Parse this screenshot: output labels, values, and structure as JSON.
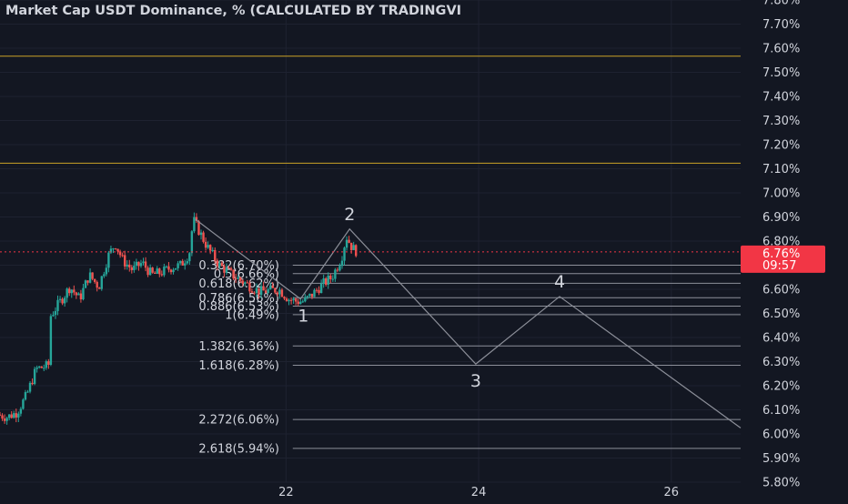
{
  "chart_data": {
    "type": "candlestick",
    "title": "Market Cap USDT Dominance, % (CALCULATED BY TRADINGVI",
    "x_ticks": [
      {
        "label": "22",
        "day": 22
      },
      {
        "label": "24",
        "day": 24
      },
      {
        "label": "26",
        "day": 26
      }
    ],
    "y_ticks": [
      "5.80%",
      "5.90%",
      "6.00%",
      "6.10%",
      "6.20%",
      "6.30%",
      "6.40%",
      "6.50%",
      "6.60%",
      "6.70%",
      "6.80%",
      "6.90%",
      "7.00%",
      "7.10%",
      "7.20%",
      "7.30%",
      "7.40%",
      "7.50%",
      "7.60%",
      "7.70%",
      "7.80%"
    ],
    "ylim": [
      5.8,
      7.8
    ],
    "xlim": [
      19.03,
      26.72
    ],
    "grid": true,
    "current_price": {
      "label": "6.76%",
      "countdown": "09:57",
      "value": 6.755
    },
    "horizontal_lines": [
      7.567,
      7.123
    ],
    "price_series": [
      [
        19.03,
        6.08
      ],
      [
        19.13,
        6.07
      ],
      [
        19.23,
        6.09
      ],
      [
        19.33,
        6.16
      ],
      [
        19.43,
        6.27
      ],
      [
        19.53,
        6.28
      ],
      [
        19.57,
        6.29
      ],
      [
        19.58,
        6.49
      ],
      [
        19.68,
        6.55
      ],
      [
        19.78,
        6.61
      ],
      [
        19.88,
        6.56
      ],
      [
        19.98,
        6.66
      ],
      [
        20.08,
        6.61
      ],
      [
        20.18,
        6.74
      ],
      [
        20.25,
        6.79
      ],
      [
        20.33,
        6.72
      ],
      [
        20.43,
        6.68
      ],
      [
        20.53,
        6.71
      ],
      [
        20.63,
        6.66
      ],
      [
        20.73,
        6.67
      ],
      [
        20.83,
        6.69
      ],
      [
        20.93,
        6.7
      ],
      [
        21.02,
        6.75
      ],
      [
        21.06,
        6.89
      ],
      [
        21.2,
        6.78
      ],
      [
        21.33,
        6.7
      ],
      [
        21.5,
        6.65
      ],
      [
        21.62,
        6.62
      ],
      [
        21.75,
        6.59
      ],
      [
        21.95,
        6.6
      ],
      [
        22.05,
        6.56
      ],
      [
        22.13,
        6.55
      ],
      [
        22.21,
        6.55
      ],
      [
        22.3,
        6.58
      ],
      [
        22.4,
        6.62
      ],
      [
        22.5,
        6.65
      ],
      [
        22.6,
        6.73
      ],
      [
        22.65,
        6.82
      ],
      [
        22.7,
        6.78
      ],
      [
        22.74,
        6.76
      ]
    ],
    "wave_path": [
      {
        "day": 21.06,
        "value": 6.89,
        "label": ""
      },
      {
        "day": 22.15,
        "value": 6.56,
        "label": "1"
      },
      {
        "day": 22.66,
        "value": 6.85,
        "label": "2"
      },
      {
        "day": 23.97,
        "value": 6.29,
        "label": "3"
      },
      {
        "day": 24.84,
        "value": 6.57,
        "label": "4"
      },
      {
        "day": 26.72,
        "value": 6.025,
        "label": ""
      }
    ],
    "fib_levels": [
      {
        "label": "0.382(6.70%)",
        "value": 6.7
      },
      {
        "label": "0.5(6.66%)",
        "value": 6.665
      },
      {
        "label": "0.618(6.62%)",
        "value": 6.625
      },
      {
        "label": "0.786(6.56%)",
        "value": 6.565
      },
      {
        "label": "0.886(6.53%)",
        "value": 6.53
      },
      {
        "label": "1(6.49%)",
        "value": 6.495
      },
      {
        "label": "1.382(6.36%)",
        "value": 6.365
      },
      {
        "label": "1.618(6.28%)",
        "value": 6.285
      },
      {
        "label": "2.272(6.06%)",
        "value": 6.06
      },
      {
        "label": "2.618(5.94%)",
        "value": 5.94
      }
    ],
    "fib_x_end": 26.72,
    "colors": {
      "background": "#131722",
      "grid": "#1e2230",
      "up": "#26a69a",
      "down": "#ef5350",
      "horizontal_line": "#c9a227",
      "fib_line": "#8c8f99",
      "wave_line": "#8c8f99",
      "text": "#d1d4dc",
      "price_tag": "#f23645",
      "current_price_line": "#f23645"
    }
  }
}
